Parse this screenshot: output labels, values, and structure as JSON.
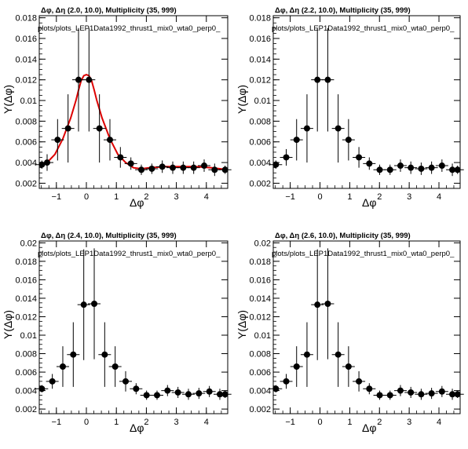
{
  "chart_data": [
    {
      "type": "scatter",
      "title": "Δφ, Δη (2.0, 10.0), Multiplicity (35, 999)",
      "subtitle": "plots/plots_LEP1Data1992_thrust1_mix0_wta0_perp0_",
      "xlabel": "Δφ",
      "ylabel": "Y(Δφ)",
      "xlim": [
        -1.5708,
        4.7124
      ],
      "ylim": [
        0.0015,
        0.0182
      ],
      "x_ticks": [
        "−1",
        "0",
        "1",
        "2",
        "3",
        "4"
      ],
      "y_ticks": [
        "0.002",
        "0.004",
        "0.006",
        "0.008",
        "0.01",
        "0.012",
        "0.014",
        "0.016",
        "0.018"
      ],
      "y_tick_values": [
        0.002,
        0.004,
        0.006,
        0.008,
        0.01,
        0.012,
        0.014,
        0.016,
        0.018
      ],
      "x": [
        -1.484,
        -1.309,
        -0.96,
        -0.611,
        -0.262,
        0.087,
        0.436,
        0.785,
        1.134,
        1.484,
        1.833,
        2.182,
        2.531,
        2.88,
        3.229,
        3.578,
        3.927,
        4.276,
        4.625
      ],
      "values": [
        0.0038,
        0.004,
        0.0062,
        0.0073,
        0.012,
        0.012,
        0.0073,
        0.0062,
        0.0045,
        0.0039,
        0.0033,
        0.0034,
        0.0036,
        0.0035,
        0.0035,
        0.0035,
        0.0037,
        0.0033,
        0.0033
      ],
      "errors": [
        0.0004,
        0.0008,
        0.002,
        0.0033,
        0.005,
        0.005,
        0.0033,
        0.002,
        0.001,
        0.0006,
        0.0005,
        0.0005,
        0.0006,
        0.0006,
        0.0006,
        0.0006,
        0.0006,
        0.0006,
        0.0004
      ],
      "fit": {
        "color": "#dd0000",
        "x": [
          -1.5708,
          -1.309,
          -1.0472,
          -0.7854,
          -0.5236,
          -0.3491,
          -0.2618,
          -0.1745,
          -0.0873,
          0,
          0.0873,
          0.1745,
          0.2618,
          0.3491,
          0.5236,
          0.7854,
          1.0472,
          1.309,
          1.5708,
          1.8326,
          2.0944,
          2.618,
          3.1416,
          3.6652,
          4.1888,
          4.7124
        ],
        "y": [
          0.0037,
          0.004,
          0.0048,
          0.0063,
          0.0083,
          0.01,
          0.011,
          0.0119,
          0.0124,
          0.0125,
          0.0124,
          0.0119,
          0.011,
          0.01,
          0.0083,
          0.0063,
          0.0048,
          0.004,
          0.0035,
          0.0034,
          0.0035,
          0.0036,
          0.0036,
          0.0036,
          0.0035,
          0.0033
        ]
      },
      "grid": false
    },
    {
      "type": "scatter",
      "title": "Δφ, Δη (2.2, 10.0), Multiplicity (35, 999)",
      "subtitle": "plots/plots_LEP1Data1992_thrust1_mix0_wta0_perp0_",
      "xlabel": "Δφ",
      "ylabel": "Y(Δφ)",
      "xlim": [
        -1.5708,
        4.7124
      ],
      "ylim": [
        0.0015,
        0.0182
      ],
      "x_ticks": [
        "−1",
        "0",
        "1",
        "2",
        "3",
        "4"
      ],
      "y_ticks": [
        "0.002",
        "0.004",
        "0.006",
        "0.008",
        "0.01",
        "0.012",
        "0.014",
        "0.016",
        "0.018"
      ],
      "y_tick_values": [
        0.002,
        0.004,
        0.006,
        0.008,
        0.01,
        0.012,
        0.014,
        0.016,
        0.018
      ],
      "x": [
        -1.484,
        -1.135,
        -0.786,
        -0.437,
        -0.087,
        0.262,
        0.611,
        0.96,
        1.309,
        1.658,
        2.007,
        2.356,
        2.705,
        3.054,
        3.403,
        3.752,
        4.101,
        4.45,
        4.625
      ],
      "values": [
        0.0038,
        0.0045,
        0.0062,
        0.0073,
        0.012,
        0.012,
        0.0073,
        0.0062,
        0.0045,
        0.0039,
        0.0033,
        0.0033,
        0.0037,
        0.0035,
        0.0034,
        0.0035,
        0.0037,
        0.0033,
        0.0033
      ],
      "errors": [
        0.0004,
        0.0008,
        0.002,
        0.0033,
        0.005,
        0.005,
        0.0033,
        0.002,
        0.001,
        0.0006,
        0.0005,
        0.0005,
        0.0006,
        0.0006,
        0.0006,
        0.0006,
        0.0006,
        0.0006,
        0.0004
      ],
      "grid": false
    },
    {
      "type": "scatter",
      "title": "Δφ, Δη (2.4, 10.0), Multiplicity (35, 999)",
      "subtitle": "plots/plots_LEP1Data1992_thrust1_mix0_wta0_perp0_",
      "xlabel": "Δφ",
      "ylabel": "Y(Δφ)",
      "xlim": [
        -1.5708,
        4.7124
      ],
      "ylim": [
        0.0015,
        0.0202
      ],
      "x_ticks": [
        "−1",
        "0",
        "1",
        "2",
        "3",
        "4"
      ],
      "y_ticks": [
        "0.002",
        "0.004",
        "0.006",
        "0.008",
        "0.01",
        "0.012",
        "0.014",
        "0.016",
        "0.018",
        "0.02"
      ],
      "y_tick_values": [
        0.002,
        0.004,
        0.006,
        0.008,
        0.01,
        0.012,
        0.014,
        0.016,
        0.018,
        0.02
      ],
      "x": [
        -1.484,
        -1.135,
        -0.786,
        -0.437,
        -0.087,
        0.262,
        0.611,
        0.96,
        1.309,
        1.658,
        2.007,
        2.356,
        2.705,
        3.054,
        3.403,
        3.752,
        4.101,
        4.45,
        4.625
      ],
      "values": [
        0.0042,
        0.005,
        0.0066,
        0.0079,
        0.0133,
        0.0134,
        0.0079,
        0.0066,
        0.005,
        0.0042,
        0.0035,
        0.0035,
        0.004,
        0.0038,
        0.0036,
        0.0037,
        0.0039,
        0.0036,
        0.0036
      ],
      "errors": [
        0.0004,
        0.0008,
        0.0022,
        0.0035,
        0.006,
        0.006,
        0.0035,
        0.0022,
        0.0011,
        0.0006,
        0.0005,
        0.0005,
        0.0006,
        0.0006,
        0.0006,
        0.0006,
        0.0006,
        0.0006,
        0.0004
      ],
      "grid": false
    },
    {
      "type": "scatter",
      "title": "Δφ, Δη (2.6, 10.0), Multiplicity (35, 999)",
      "subtitle": "plots/plots_LEP1Data1992_thrust1_mix0_wta0_perp0_",
      "xlabel": "Δφ",
      "ylabel": "Y(Δφ)",
      "xlim": [
        -1.5708,
        4.7124
      ],
      "ylim": [
        0.0015,
        0.0202
      ],
      "x_ticks": [
        "−1",
        "0",
        "1",
        "2",
        "3",
        "4"
      ],
      "y_ticks": [
        "0.002",
        "0.004",
        "0.006",
        "0.008",
        "0.01",
        "0.012",
        "0.014",
        "0.016",
        "0.018",
        "0.02"
      ],
      "y_tick_values": [
        0.002,
        0.004,
        0.006,
        0.008,
        0.01,
        0.012,
        0.014,
        0.016,
        0.018,
        0.02
      ],
      "x": [
        -1.484,
        -1.135,
        -0.786,
        -0.437,
        -0.087,
        0.262,
        0.611,
        0.96,
        1.309,
        1.658,
        2.007,
        2.356,
        2.705,
        3.054,
        3.403,
        3.752,
        4.101,
        4.45,
        4.625
      ],
      "values": [
        0.0042,
        0.005,
        0.0066,
        0.0079,
        0.0133,
        0.0134,
        0.0079,
        0.0066,
        0.005,
        0.0042,
        0.0035,
        0.0035,
        0.004,
        0.0038,
        0.0036,
        0.0037,
        0.0039,
        0.0036,
        0.0036
      ],
      "errors": [
        0.0004,
        0.0008,
        0.0022,
        0.0035,
        0.006,
        0.006,
        0.0035,
        0.0022,
        0.0011,
        0.0006,
        0.0005,
        0.0005,
        0.0006,
        0.0006,
        0.0006,
        0.0006,
        0.0006,
        0.0006,
        0.0004
      ],
      "grid": false
    }
  ]
}
